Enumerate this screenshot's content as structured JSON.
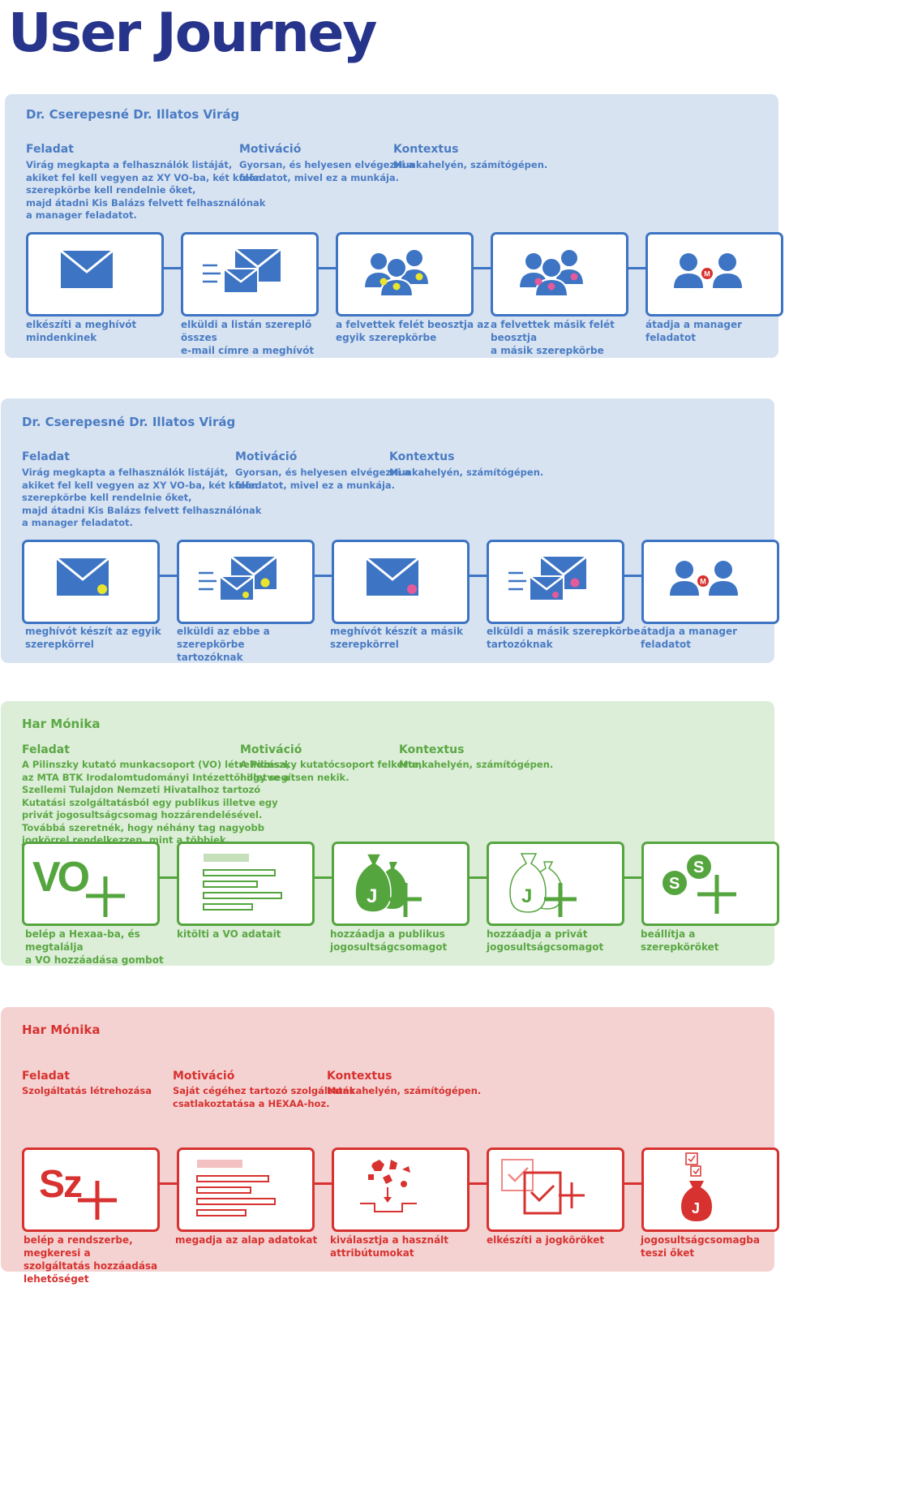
{
  "title": "User Journey",
  "panels": [
    {
      "persona": "Dr. Cserepesné Dr. Illatos Virág",
      "feladat_label": "Feladat",
      "feladat_text": "Virág megkapta a felhasználók listáját,\nakiket fel kell vegyen az XY VO-ba, két külön\nszerepkörbe kell rendelnie őket,\nmajd átadni Kis Balázs felvett felhasználónak\na manager feladatot.",
      "motivacio_label": "Motiváció",
      "motivacio_text": "Gyorsan, és helyesen elvégezni a\nfeladatot, mivel ez a munkája.",
      "kontextus_label": "Kontextus",
      "kontextus_text": "Munkahelyén, számítógépen.",
      "steps": [
        {
          "icon": "envelope-icon",
          "caption": "elkészíti a meghívót\nmindenkinek"
        },
        {
          "icon": "send-envelopes-icon",
          "caption": "elküldi a listán szereplő összes\ne-mail címre a meghívót"
        },
        {
          "icon": "user-group-yellow-icon",
          "caption": "a felvettek felét beosztja az\negyik szerepkörbe"
        },
        {
          "icon": "user-group-pink-icon",
          "caption": "a felvettek másik felét beosztja\na másik szerepkörbe"
        },
        {
          "icon": "manager-handover-icon",
          "caption": "átadja a manager feladatot",
          "badge": "M"
        }
      ]
    },
    {
      "persona": "Dr. Cserepesné Dr. Illatos Virág",
      "feladat_label": "Feladat",
      "feladat_text": "Virág megkapta a felhasználók listáját,\nakiket fel kell vegyen az XY VO-ba, két külön\nszerepkörbe kell rendelnie őket,\nmajd átadni Kis Balázs felvett felhasználónak\na manager feladatot.",
      "motivacio_label": "Motiváció",
      "motivacio_text": "Gyorsan, és helyesen elvégezni a\nfeladatot, mivel ez a munkája.",
      "kontextus_label": "Kontextus",
      "kontextus_text": "Munkahelyén, számítógépen.",
      "steps": [
        {
          "icon": "envelope-yellow-icon",
          "caption": "meghívót készít az egyik\nszerepkörrel"
        },
        {
          "icon": "send-envelopes-yellow-icon",
          "caption": "elküldi az ebbe a szerepkörbe\ntartozóknak"
        },
        {
          "icon": "envelope-pink-icon",
          "caption": "meghívót készít a másik\nszerepkörrel"
        },
        {
          "icon": "send-envelopes-pink-icon",
          "caption": "elküldi a másik szerepkörbe\ntartozóknak"
        },
        {
          "icon": "manager-handover-icon",
          "caption": "átadja a manager feladatot",
          "badge": "M"
        }
      ]
    },
    {
      "persona": "Har Mónika",
      "feladat_label": "Feladat",
      "feladat_text": "A Pilinszky kutató munkacsoport (VO) létrehozása,\naz MTA BTK Irodalomtudományi Intézettől illetve a\nSzellemi Tulajdon Nemzeti Hivatalhoz tartozó\nKutatási szolgáltatásból egy publikus illetve egy\nprivát jogosultságcsomag hozzárendelésével.\nTovábbá szeretnék, hogy néhány tag nagyobb\njogkörrel rendelkezzen, mint a többiek.",
      "motivacio_label": "Motiváció",
      "motivacio_text": "A Pilinszky kutatócsoport felkérte,\nhogy segítsen nekik.",
      "kontextus_label": "Kontextus",
      "kontextus_text": "Munkahelyén, számítógépen.",
      "steps": [
        {
          "icon": "add-vo-icon",
          "caption": "belép a Hexaa-ba, és megtalálja\na VO hozzáadása gombot",
          "glyph": "VO"
        },
        {
          "icon": "form-icon",
          "caption": "kitölti a VO adatait"
        },
        {
          "icon": "add-public-package-icon",
          "caption": "hozzáadja a publikus\njogosultságcsomagot",
          "glyph": "J"
        },
        {
          "icon": "add-private-package-icon",
          "caption": "hozzáadja a privát\njogosultságcsomagot",
          "glyph": "J"
        },
        {
          "icon": "add-roles-icon",
          "caption": "beállítja a szerepköröket",
          "glyph": "S"
        }
      ]
    },
    {
      "persona": "Har Mónika",
      "feladat_label": "Feladat",
      "feladat_text": "Szolgáltatás létrehozása",
      "motivacio_label": "Motiváció",
      "motivacio_text": "Saját cégéhez tartozó szolgáltatás\ncsatlakoztatása a HEXAA-hoz.",
      "kontextus_label": "Kontextus",
      "kontextus_text": "Munkahelyén, számítógépen.",
      "steps": [
        {
          "icon": "add-service-icon",
          "caption": "belép a rendszerbe, megkeresi a\nszolgáltatás hozzáadása\nlehetőséget",
          "glyph": "Sz"
        },
        {
          "icon": "form-icon",
          "caption": "megadja az alap adatokat"
        },
        {
          "icon": "select-attributes-icon",
          "caption": "kiválasztja a használt\nattribútumokat"
        },
        {
          "icon": "create-permissions-icon",
          "caption": "elkészíti a jogköröket"
        },
        {
          "icon": "test-package-icon",
          "caption": "jogosultságcsomagba\nteszi őket",
          "glyph": "J"
        }
      ]
    }
  ],
  "colors": {
    "title": "#27348b",
    "blue": "#3d74c4",
    "blue_bg": "#d8e3f1",
    "green": "#55a53f",
    "green_bg": "#dcedd8",
    "red": "#d7322f",
    "red_bg": "#f4d2d2",
    "yellow": "#e8e52c",
    "pink": "#e55a9a"
  }
}
